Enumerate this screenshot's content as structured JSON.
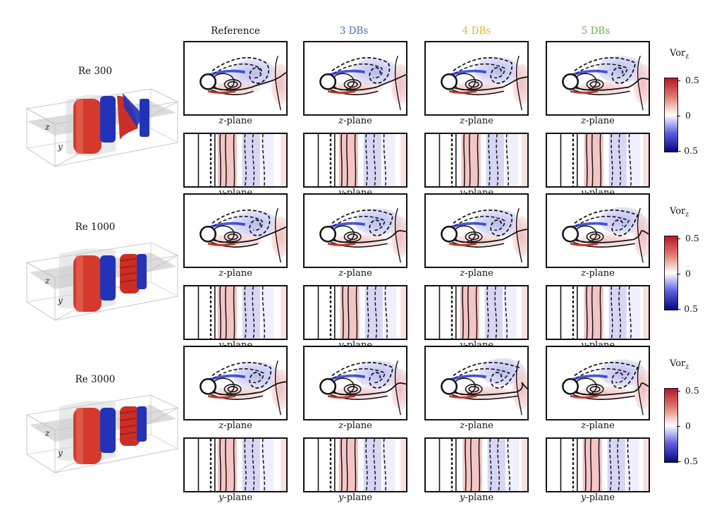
{
  "columns": [
    "Reference",
    "3 DBs",
    "4 DBs",
    "5 DBs"
  ],
  "column_colors": [
    "#1a1a1a",
    "#4a6cb3",
    "#e3b33c",
    "#6fae4f"
  ],
  "rows": [
    {
      "label": "Re 300"
    },
    {
      "label": "Re 1000"
    },
    {
      "label": "Re 3000"
    }
  ],
  "plane_labels": {
    "z": "z",
    "y": "y",
    "suffix": "-plane"
  },
  "iso_axis": {
    "z": "z",
    "y": "y"
  },
  "colorbar": {
    "title": "Vor",
    "subscript": "z",
    "ticks": [
      "0.5",
      "0",
      "- 0.5"
    ],
    "max_color": "#b2182b",
    "mid_color": "#ffffff",
    "min_color": "#08087a"
  }
}
